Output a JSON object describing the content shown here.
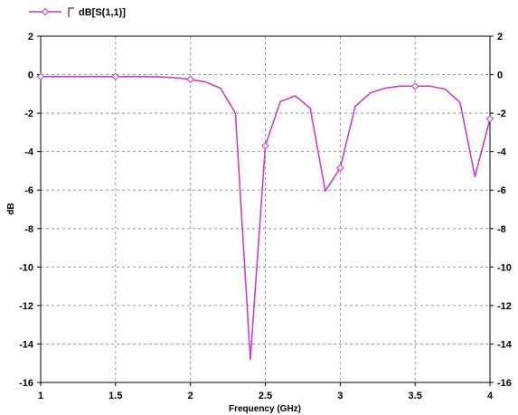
{
  "chart_data": {
    "type": "line",
    "xlabel": "Frequency (GHz)",
    "ylabel": "dB",
    "xlim": [
      1,
      4
    ],
    "ylim": [
      -16,
      2
    ],
    "x_ticks": [
      "1",
      "1.5",
      "2",
      "2.5",
      "3",
      "3.5",
      "4"
    ],
    "y_ticks": [
      "2",
      "0",
      "-2",
      "-4",
      "-6",
      "-8",
      "-10",
      "-12",
      "-14",
      "-16"
    ],
    "y_ticks_right": [
      "2",
      "0",
      "-2",
      "-4",
      "-6",
      "-8",
      "-10",
      "-12",
      "-14",
      "-16"
    ],
    "grid": true,
    "legend_position": "top-left",
    "series": [
      {
        "name": "dB[S(1,1)]",
        "color": "#cc33cc",
        "marker": "diamond",
        "x": [
          1.0,
          1.1,
          1.2,
          1.3,
          1.4,
          1.5,
          1.6,
          1.7,
          1.8,
          1.9,
          2.0,
          2.1,
          2.2,
          2.3,
          2.4,
          2.5,
          2.6,
          2.7,
          2.8,
          2.9,
          3.0,
          3.1,
          3.2,
          3.3,
          3.4,
          3.5,
          3.6,
          3.7,
          3.8,
          3.9,
          4.0
        ],
        "y": [
          -0.1,
          -0.1,
          -0.1,
          -0.1,
          -0.1,
          -0.1,
          -0.1,
          -0.1,
          -0.12,
          -0.16,
          -0.25,
          -0.38,
          -0.7,
          -2.0,
          -14.8,
          -3.7,
          -1.4,
          -1.1,
          -1.75,
          -6.05,
          -4.85,
          -1.65,
          -0.95,
          -0.7,
          -0.6,
          -0.6,
          -0.6,
          -0.75,
          -1.45,
          -5.3,
          -2.3
        ],
        "marker_x": [
          1.0,
          1.5,
          2.0,
          2.5,
          3.0,
          3.5,
          4.0
        ]
      }
    ]
  }
}
